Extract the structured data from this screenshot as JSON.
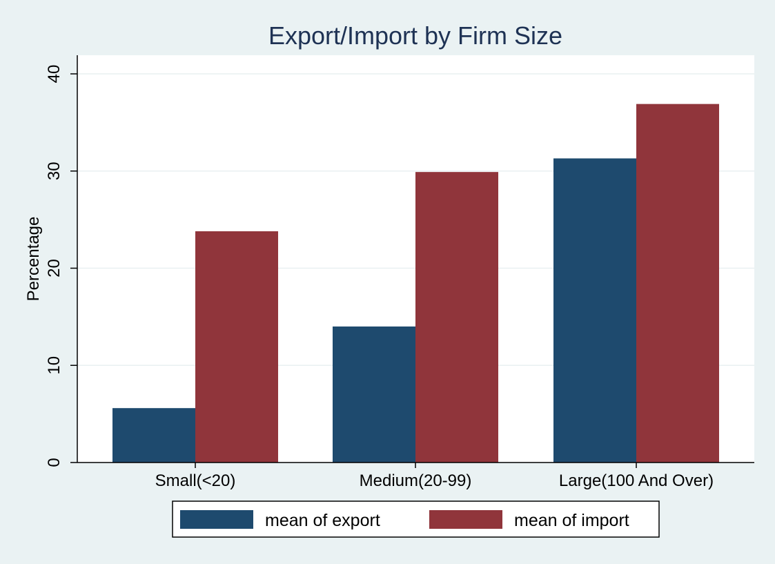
{
  "chart_data": {
    "type": "bar",
    "title": "Export/Import by Firm Size",
    "xlabel": "",
    "ylabel": "Percentage",
    "categories": [
      "Small(<20)",
      "Medium(20-99)",
      "Large(100 And Over)"
    ],
    "series": [
      {
        "name": "mean of export",
        "values": [
          5.6,
          14.0,
          31.3
        ],
        "color": "#1e4a6e"
      },
      {
        "name": "mean of import",
        "values": [
          23.8,
          29.9,
          36.9
        ],
        "color": "#90353b"
      }
    ],
    "ylim": [
      0,
      40
    ],
    "yticks": [
      0,
      10,
      20,
      30,
      40
    ],
    "grid": true,
    "legend_position": "bottom"
  }
}
